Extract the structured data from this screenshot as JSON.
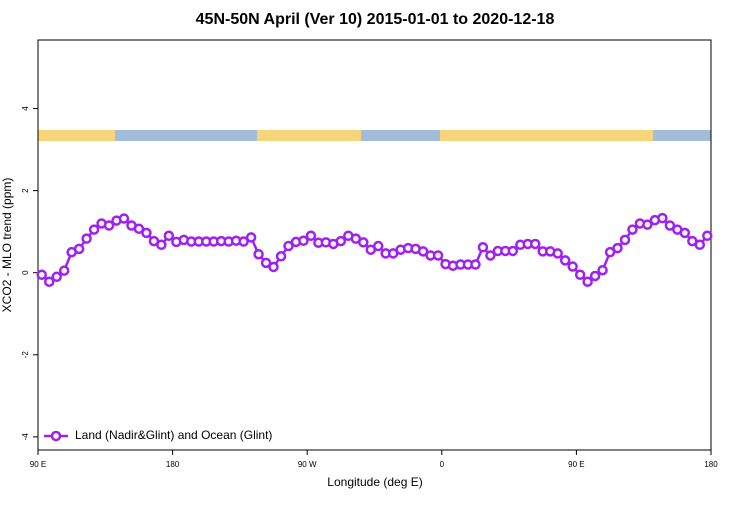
{
  "chart_data": {
    "type": "line",
    "title": "45N-50N April (Ver 10)   2015-01-01 to 2020-12-18",
    "x_label": "Longitude (deg E)",
    "y_label": "XCO2 - MLO trend (ppm)",
    "x": [
      92.5,
      97.5,
      102.5,
      107.5,
      112.5,
      117.5,
      122.5,
      127.5,
      132.5,
      137.5,
      142.5,
      147.5,
      152.5,
      157.5,
      162.5,
      167.5,
      172.5,
      177.5,
      182.5,
      187.5,
      192.5,
      197.5,
      202.5,
      207.5,
      212.5,
      217.5,
      222.5,
      227.5,
      232.5,
      237.5,
      242.5,
      247.5,
      252.5,
      257.5,
      262.5,
      267.5,
      272.5,
      277.5,
      282.5,
      287.5,
      292.5,
      297.5,
      302.5,
      307.5,
      312.5,
      317.5,
      322.5,
      327.5,
      332.5,
      337.5,
      342.5,
      347.5,
      352.5,
      357.5,
      362.5,
      367.5,
      372.5,
      377.5,
      382.5,
      387.5,
      392.5,
      397.5,
      402.5,
      407.5,
      412.5,
      417.5,
      422.5,
      427.5,
      432.5,
      437.5,
      442.5,
      447.5,
      452.5,
      457.5,
      462.5,
      467.5,
      472.5,
      477.5,
      482.5,
      487.5,
      492.5,
      497.5,
      502.5,
      507.5,
      512.5,
      517.5,
      522.5,
      527.5,
      532.5,
      537.5
    ],
    "series": [
      {
        "name": "Land (Nadir&Glint) and Ocean (Glint)",
        "color": "#a020f0",
        "values": [
          -0.05,
          -0.22,
          -0.1,
          0.05,
          0.5,
          0.58,
          0.83,
          1.05,
          1.2,
          1.15,
          1.27,
          1.32,
          1.15,
          1.07,
          0.97,
          0.77,
          0.68,
          0.9,
          0.75,
          0.8,
          0.76,
          0.76,
          0.76,
          0.76,
          0.77,
          0.76,
          0.78,
          0.76,
          0.86,
          0.45,
          0.24,
          0.14,
          0.4,
          0.65,
          0.75,
          0.78,
          0.9,
          0.73,
          0.74,
          0.7,
          0.77,
          0.9,
          0.83,
          0.74,
          0.56,
          0.65,
          0.47,
          0.47,
          0.56,
          0.6,
          0.58,
          0.52,
          0.42,
          0.42,
          0.21,
          0.17,
          0.2,
          0.2,
          0.2,
          0.62,
          0.42,
          0.53,
          0.53,
          0.53,
          0.68,
          0.7,
          0.7,
          0.52,
          0.52,
          0.47,
          0.3,
          0.15,
          -0.05,
          -0.22,
          -0.08,
          0.06,
          0.5,
          0.6,
          0.8,
          1.05,
          1.2,
          1.17,
          1.28,
          1.33,
          1.15,
          1.05,
          0.97,
          0.77,
          0.68,
          0.9
        ]
      }
    ],
    "xlim": [
      90,
      540
    ],
    "xticks": [
      {
        "value": 90,
        "label": "90 E"
      },
      180,
      {
        "value": 270,
        "label": "90 W"
      },
      {
        "value": 360,
        "label": "0"
      },
      {
        "value": 450,
        "label": "90 E"
      },
      {
        "value": 540,
        "label": "180"
      }
    ],
    "ylim": [
      -4.32,
      5.67
    ],
    "yticks": [
      -4,
      -2,
      0,
      2,
      4
    ],
    "legend": "bottomleft"
  }
}
